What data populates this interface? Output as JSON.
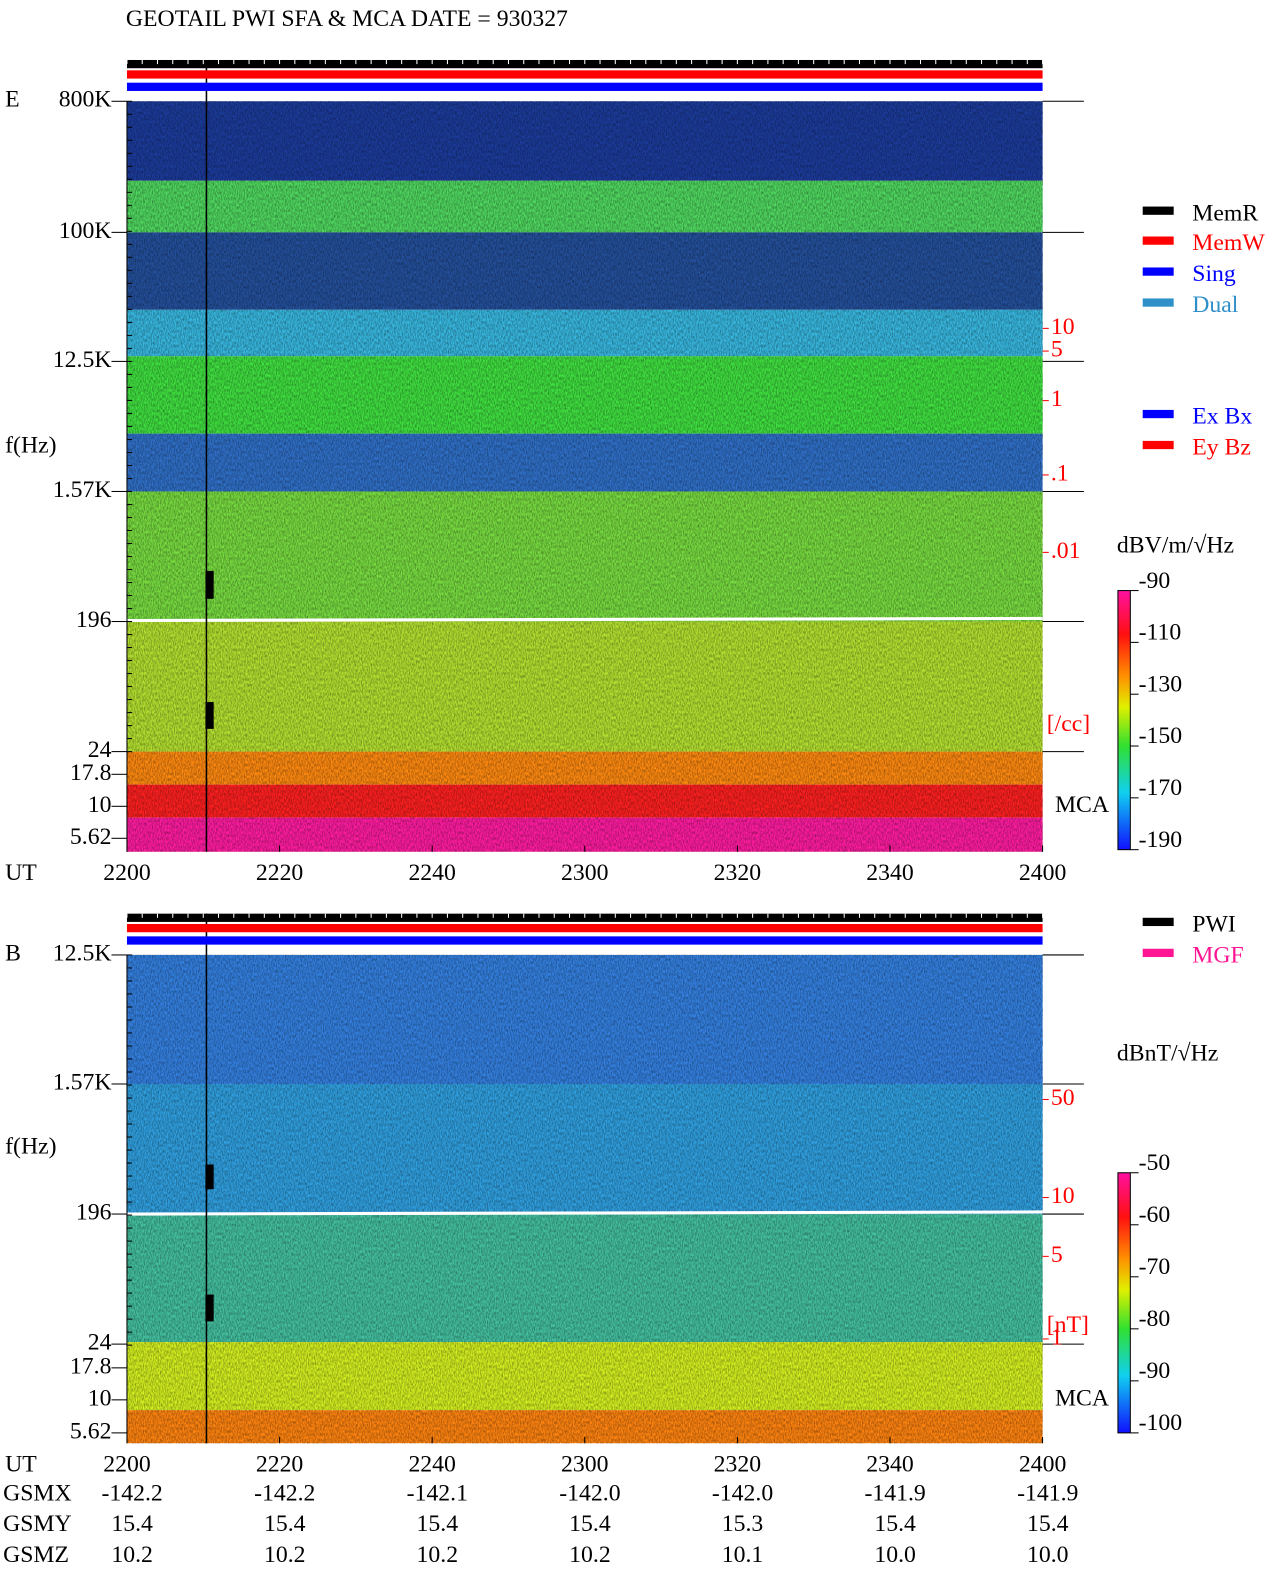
{
  "title": "GEOTAIL  PWI SFA & MCA   DATE = 930327",
  "panels": [
    {
      "label": "E",
      "y_axis_label": "f(Hz)",
      "freq_labels": [
        "800K",
        "100K",
        "12.5K",
        "1.57K",
        "196",
        "24",
        "17.8",
        "10",
        "5.62"
      ],
      "time_label": "UT",
      "time_ticks": [
        "2200",
        "2220",
        "2240",
        "2300",
        "2320",
        "2340",
        "2400"
      ],
      "right_scale": {
        "ticks": [
          "10",
          "5",
          "1",
          ".1",
          ".01"
        ],
        "unit": "[/cc]"
      },
      "mca_label": "MCA",
      "legend": [
        {
          "name": "MemR",
          "color": "#000000"
        },
        {
          "name": "MemW",
          "color": "#ff0000"
        },
        {
          "name": "Sing",
          "color": "#0000ff"
        },
        {
          "name": "Dual",
          "color": "#2f8fc8"
        }
      ],
      "legend2": [
        {
          "name": "Ex Bx",
          "color": "#0000ff"
        },
        {
          "name": "Ey Bz",
          "color": "#ff0000"
        }
      ],
      "colorbar": {
        "unit": "dBV/m/√Hz",
        "ticks": [
          -90,
          -110,
          -130,
          -150,
          -170,
          -190
        ]
      }
    },
    {
      "label": "B",
      "y_axis_label": "f(Hz)",
      "freq_labels": [
        "12.5K",
        "1.57K",
        "196",
        "24",
        "17.8",
        "10",
        "5.62"
      ],
      "time_label": "UT",
      "time_ticks": [
        "2200",
        "2220",
        "2240",
        "2300",
        "2320",
        "2340",
        "2400"
      ],
      "right_scale": {
        "ticks": [
          "50",
          "10",
          "5",
          "1"
        ],
        "unit": "[nT]"
      },
      "mca_label": "MCA",
      "legend": [
        {
          "name": "PWI",
          "color": "#000000"
        },
        {
          "name": "MGF",
          "color": "#ff1493"
        }
      ],
      "colorbar": {
        "unit": "dBnT/√Hz",
        "ticks": [
          -50,
          -60,
          -70,
          -80,
          -90,
          -100
        ]
      }
    }
  ],
  "orbit": {
    "rows": [
      {
        "name": "GSMX",
        "values": [
          "-142.2",
          "-142.2",
          "-142.1",
          "-142.0",
          "-142.0",
          "-141.9",
          "-141.9"
        ]
      },
      {
        "name": "GSMY",
        "values": [
          "15.4",
          "15.4",
          "15.4",
          "15.4",
          "15.3",
          "15.4",
          "15.4"
        ]
      },
      {
        "name": "GSMZ",
        "values": [
          "10.2",
          "10.2",
          "10.2",
          "10.2",
          "10.1",
          "10.0",
          "10.0"
        ]
      }
    ]
  }
}
